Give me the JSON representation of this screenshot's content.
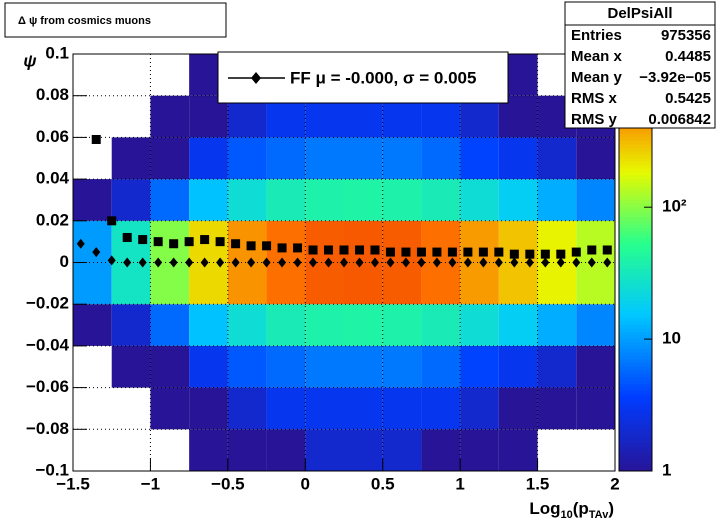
{
  "chart_data": {
    "type": "heatmap",
    "title": "Δ ψ from cosmics muons",
    "x_label_parts": [
      "Log",
      "10",
      "(p",
      "TAv",
      ")"
    ],
    "y_label": "ψ",
    "xlim": [
      -1.5,
      2
    ],
    "ylim": [
      -0.1,
      0.1
    ],
    "xticks": [
      {
        "value": -1.5,
        "label": "−1.5"
      },
      {
        "value": -1,
        "label": "−1"
      },
      {
        "value": -0.5,
        "label": "−0.5"
      },
      0,
      0.5,
      1,
      1.5,
      2
    ],
    "yticks": [
      {
        "value": -0.1,
        "label": "−0.1"
      },
      {
        "value": -0.08,
        "label": "−0.08"
      },
      {
        "value": -0.06,
        "label": "−0.06"
      },
      {
        "value": -0.04,
        "label": "−0.04"
      },
      {
        "value": -0.02,
        "label": "−0.02"
      },
      0,
      0.02,
      0.04,
      0.06,
      0.08,
      0.1
    ],
    "grid": true,
    "x_bins": [
      -1.5,
      -1.25,
      -1,
      -0.75,
      -0.5,
      -0.25,
      0,
      0.25,
      0.5,
      0.75,
      1,
      1.25,
      1.5,
      1.75,
      2
    ],
    "y_bins": [
      -0.1,
      -0.08,
      -0.06,
      -0.04,
      -0.02,
      0,
      0.02,
      0.04,
      0.06,
      0.08,
      0.1
    ],
    "z": [
      [
        0,
        0,
        0,
        1,
        1,
        1,
        2,
        2,
        2,
        1,
        1,
        1,
        0,
        0
      ],
      [
        0,
        0,
        1,
        1,
        2,
        3,
        3,
        3,
        3,
        3,
        2,
        1,
        1,
        1
      ],
      [
        0,
        1,
        1,
        3,
        5,
        6,
        7,
        7,
        7,
        6,
        4,
        3,
        2,
        1
      ],
      [
        1,
        2,
        6,
        15,
        25,
        35,
        40,
        42,
        40,
        35,
        25,
        18,
        12,
        8
      ],
      [
        10,
        30,
        100,
        250,
        450,
        600,
        700,
        720,
        700,
        600,
        420,
        300,
        200,
        140
      ],
      [
        10,
        30,
        100,
        250,
        450,
        600,
        700,
        720,
        700,
        600,
        420,
        300,
        200,
        140
      ],
      [
        1,
        2,
        6,
        15,
        25,
        35,
        40,
        42,
        40,
        35,
        25,
        18,
        12,
        8
      ],
      [
        0,
        1,
        1,
        3,
        5,
        6,
        7,
        7,
        7,
        6,
        4,
        3,
        2,
        1
      ],
      [
        0,
        0,
        1,
        1,
        2,
        3,
        3,
        3,
        3,
        3,
        2,
        1,
        1,
        1
      ],
      [
        0,
        0,
        0,
        1,
        1,
        1,
        2,
        2,
        2,
        1,
        1,
        1,
        0,
        0
      ]
    ],
    "zlim": [
      1,
      1450
    ],
    "zlog": true,
    "zticks": [
      1,
      10,
      {
        "value": 100,
        "label": "10²"
      }
    ],
    "x": [
      -1.45,
      -1.35,
      -1.25,
      -1.15,
      -1.05,
      -0.95,
      -0.85,
      -0.75,
      -0.65,
      -0.55,
      -0.45,
      -0.35,
      -0.25,
      -0.15,
      -0.05,
      0.05,
      0.15,
      0.25,
      0.35,
      0.45,
      0.55,
      0.65,
      0.75,
      0.85,
      0.95,
      1.05,
      1.15,
      1.25,
      1.35,
      1.45,
      1.55,
      1.65,
      1.75,
      1.85,
      1.95
    ],
    "series": [
      {
        "marker": "square",
        "color": "#000000",
        "values": [
          null,
          0.059,
          0.02,
          0.012,
          0.011,
          0.01,
          0.009,
          0.01,
          0.011,
          0.01,
          0.009,
          0.008,
          0.008,
          0.007,
          0.007,
          0.006,
          0.006,
          0.006,
          0.006,
          0.006,
          0.005,
          0.005,
          0.005,
          0.005,
          0.005,
          0.005,
          0.005,
          0.005,
          0.004,
          0.004,
          0.004,
          0.004,
          0.005,
          0.006,
          0.006
        ]
      },
      {
        "name": "FF μ = -0.000, σ =   0.005",
        "marker": "diamond",
        "color": "#000000",
        "values": [
          0.009,
          0.005,
          0.001,
          0,
          0,
          0,
          0,
          0,
          0,
          0,
          0,
          0,
          0,
          0,
          0,
          0,
          0,
          0,
          0,
          0,
          0,
          0,
          0,
          0,
          0,
          0,
          0,
          0,
          0,
          0,
          0,
          0,
          0,
          0,
          0
        ]
      }
    ],
    "stats": {
      "title": "DelPsiAll",
      "rows": [
        {
          "name": "Entries",
          "value": "975356"
        },
        {
          "name": "Mean x",
          "value": "0.4485"
        },
        {
          "name": "Mean y",
          "value": "−3.92e−05"
        },
        {
          "name": "RMS x",
          "value": "0.5425"
        },
        {
          "name": "RMS y",
          "value": "0.006842"
        }
      ]
    }
  }
}
